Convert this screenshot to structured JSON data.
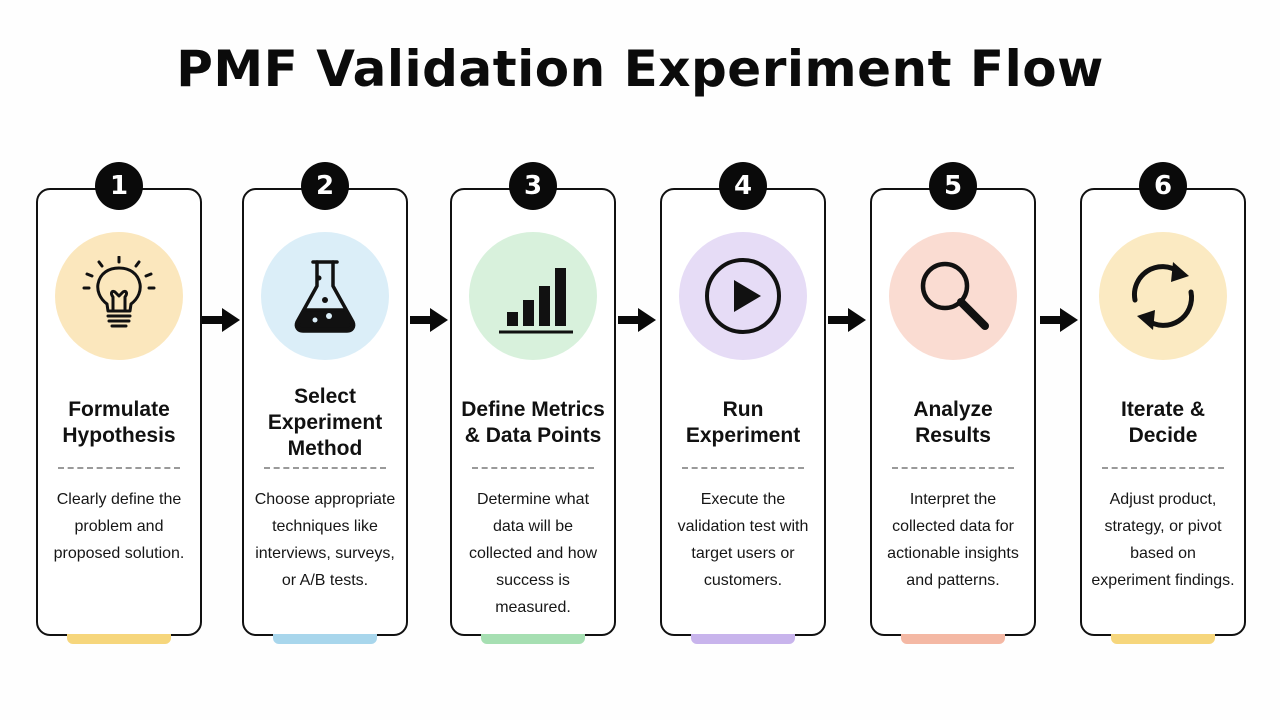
{
  "title": "PMF Validation Experiment Flow",
  "steps": [
    {
      "number": "1",
      "title": "Formulate Hypothesis",
      "description": "Clearly define the problem and proposed solution.",
      "icon": "lightbulb-icon",
      "color": "#fbe7bd",
      "tab_color": "#f6d67c"
    },
    {
      "number": "2",
      "title": "Select Experiment Method",
      "description": "Choose appropriate techniques like interviews, surveys, or A/B tests.",
      "icon": "flask-icon",
      "color": "#dbeef8",
      "tab_color": "#a8d6ec"
    },
    {
      "number": "3",
      "title": "Define Metrics & Data Points",
      "description": "Determine what data will be collected and how success is measured.",
      "icon": "bar-chart-icon",
      "color": "#d8f1dc",
      "tab_color": "#a6dfb2"
    },
    {
      "number": "4",
      "title": "Run Experiment",
      "description": "Execute the validation test with target users or customers.",
      "icon": "play-icon",
      "color": "#e6dcf6",
      "tab_color": "#c8b4ec"
    },
    {
      "number": "5",
      "title": "Analyze Results",
      "description": "Interpret the collected data for actionable insights and patterns.",
      "icon": "magnifier-icon",
      "color": "#fadcd2",
      "tab_color": "#f4b8a4"
    },
    {
      "number": "6",
      "title": "Iterate & Decide",
      "description": "Adjust product, strategy, or pivot based on experiment findings.",
      "icon": "refresh-icon",
      "color": "#fbeac2",
      "tab_color": "#f6d67c"
    }
  ]
}
